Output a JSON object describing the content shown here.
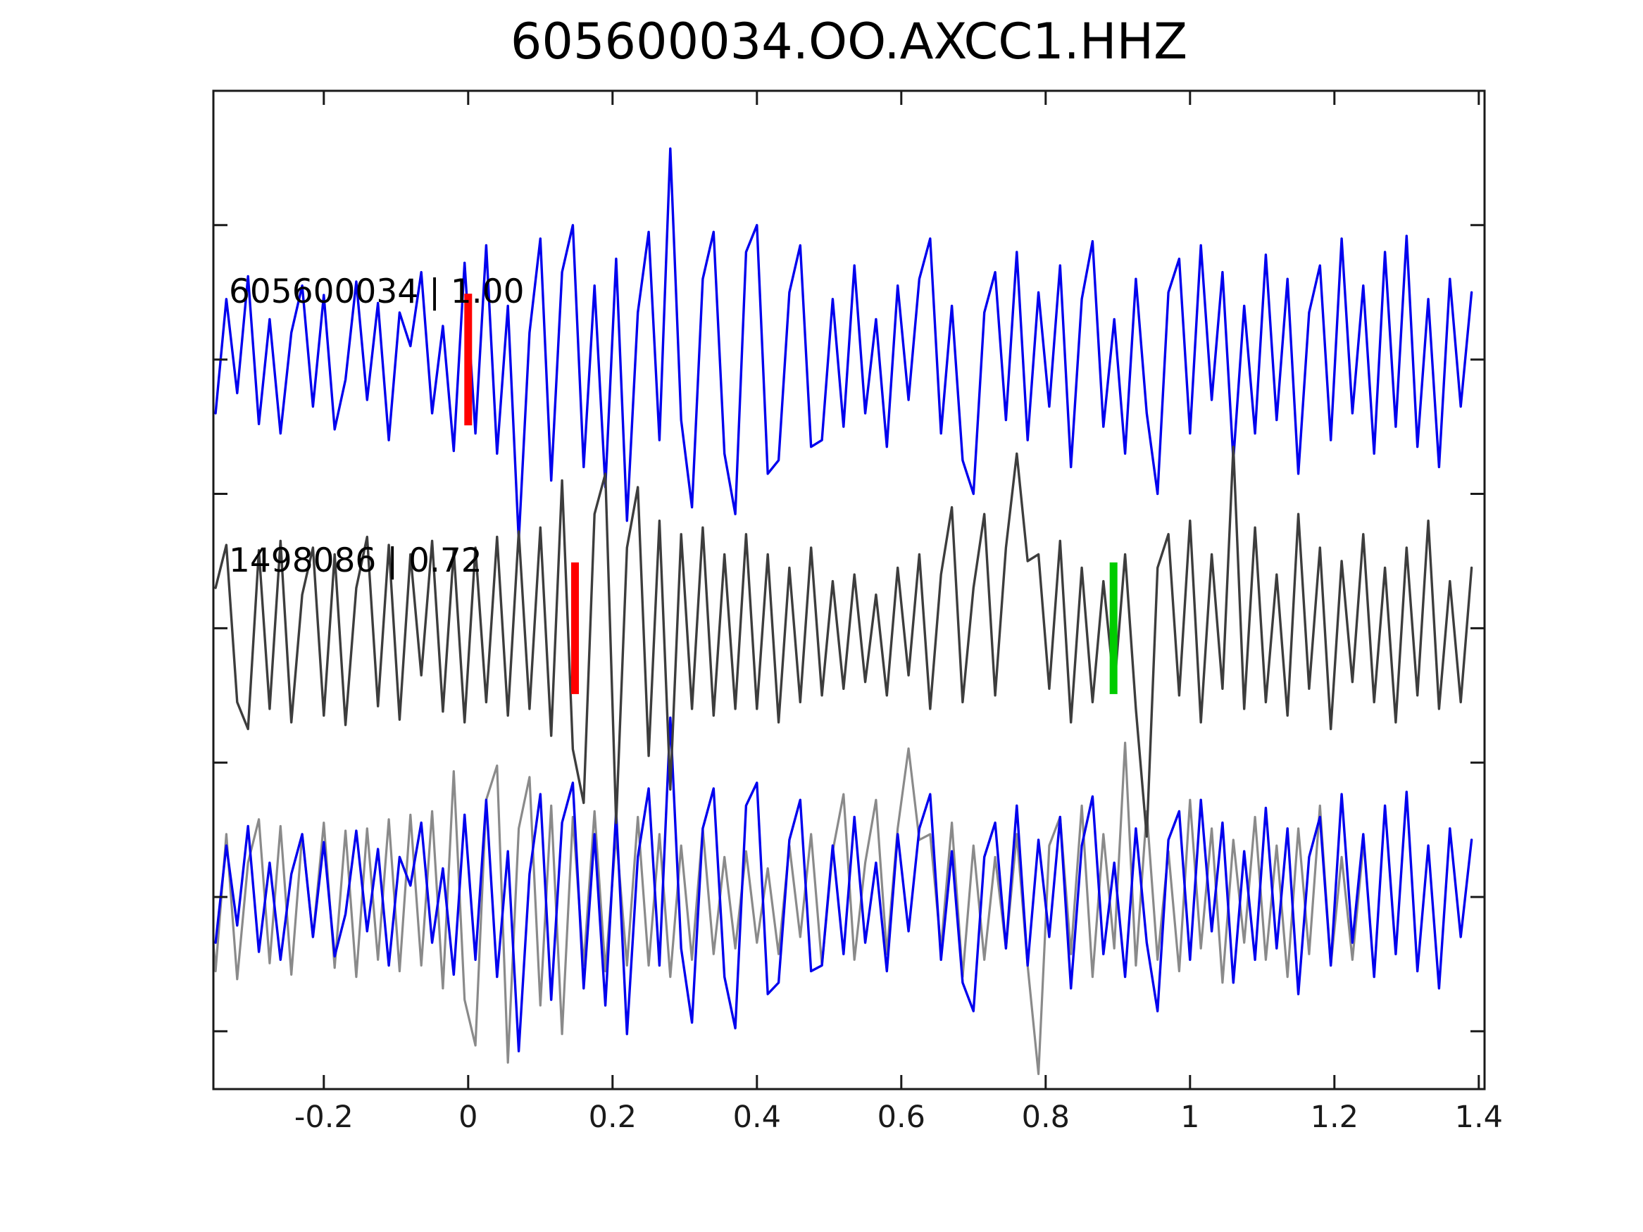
{
  "chart_data": {
    "type": "line",
    "title": "605600034.OO.AXCC1.HHZ",
    "xlabel": "",
    "ylabel": "",
    "xlim": [
      -0.353,
      1.408
    ],
    "ylim": [
      -5.43,
      2.0
    ],
    "grid": false,
    "legend": "none",
    "axis_color": "#1a1a1a",
    "background": "#ffffff",
    "x_ticks": [
      -0.2,
      0,
      0.2,
      0.4,
      0.6,
      0.8,
      1,
      1.2,
      1.4
    ],
    "x_tick_labels": [
      "-0.2",
      "0",
      "0.2",
      "0.4",
      "0.6",
      "0.8",
      "1",
      "1.2",
      "1.4"
    ],
    "y_ticks": [
      2,
      1,
      0,
      -1,
      -2,
      -3,
      -4,
      -5
    ],
    "y_tick_labels": [],
    "x_start": -0.35,
    "x_step": 0.015,
    "template_values": [
      -0.4,
      0.45,
      -0.25,
      0.62,
      -0.48,
      0.3,
      -0.55,
      0.2,
      0.55,
      -0.35,
      0.48,
      -0.52,
      -0.15,
      0.58,
      -0.3,
      0.42,
      -0.6,
      0.35,
      0.1,
      0.65,
      -0.4,
      0.25,
      -0.68,
      0.72,
      -0.55,
      0.85,
      -0.7,
      0.4,
      -1.35,
      0.2,
      0.9,
      -0.9,
      0.65,
      1.0,
      -0.8,
      0.55,
      -0.95,
      0.75,
      -1.2,
      0.35,
      0.95,
      -0.6,
      1.57,
      -0.45,
      -1.1,
      0.6,
      0.95,
      -0.7,
      -1.15,
      0.8,
      1.0,
      -0.85,
      -0.75,
      0.5,
      0.85,
      -0.65,
      -0.6,
      0.45,
      -0.5,
      0.7,
      -0.4,
      0.3,
      -0.65,
      0.55,
      -0.3,
      0.6,
      0.9,
      -0.55,
      0.4,
      -0.75,
      -1.0,
      0.35,
      0.65,
      -0.45,
      0.8,
      -0.6,
      0.5,
      -0.35,
      0.7,
      -0.8,
      0.45,
      0.88,
      -0.5,
      0.3,
      -0.7,
      0.6,
      -0.4,
      -1.0,
      0.5,
      0.75,
      -0.55,
      0.85,
      -0.3,
      0.65,
      -0.75,
      0.4,
      -0.55,
      0.78,
      -0.45,
      0.6,
      -0.85,
      0.35,
      0.7,
      -0.6,
      0.9,
      -0.4,
      0.55,
      -0.7,
      0.8,
      -0.5,
      0.92,
      -0.65,
      0.45,
      -0.8,
      0.6,
      -0.35,
      0.5
    ],
    "detection_values": [
      0.3,
      0.62,
      -0.55,
      -0.75,
      0.58,
      -0.6,
      0.65,
      -0.7,
      0.25,
      0.6,
      -0.65,
      0.55,
      -0.72,
      0.3,
      0.68,
      -0.58,
      0.62,
      -0.68,
      0.55,
      -0.35,
      0.65,
      -0.62,
      0.58,
      -0.7,
      0.6,
      -0.55,
      0.68,
      -0.65,
      0.72,
      -0.6,
      0.75,
      -0.8,
      1.1,
      -0.9,
      -1.3,
      0.85,
      1.15,
      -1.45,
      0.6,
      1.05,
      -0.95,
      0.8,
      -1.2,
      0.7,
      -0.6,
      0.75,
      -0.65,
      0.55,
      -0.6,
      0.7,
      -0.6,
      0.55,
      -0.7,
      0.45,
      -0.55,
      0.6,
      -0.5,
      0.35,
      -0.45,
      0.4,
      -0.4,
      0.25,
      -0.5,
      0.45,
      -0.35,
      0.55,
      -0.6,
      0.4,
      0.9,
      -0.55,
      0.3,
      0.85,
      -0.5,
      0.6,
      1.3,
      0.5,
      0.55,
      -0.45,
      0.65,
      -0.7,
      0.45,
      -0.55,
      0.35,
      -0.45,
      0.55,
      -0.6,
      -1.55,
      0.45,
      0.7,
      -0.5,
      0.8,
      -0.7,
      0.55,
      -0.45,
      1.35,
      -0.6,
      0.75,
      -0.55,
      0.4,
      -0.65,
      0.85,
      -0.45,
      0.6,
      -0.75,
      0.5,
      -0.4,
      0.7,
      -0.55,
      0.45,
      -0.7,
      0.6,
      -0.5,
      0.8,
      -0.6,
      0.35,
      -0.55,
      0.45
    ],
    "series": [
      {
        "name": "detection-overlay",
        "color": "#8a8a8a",
        "offset": -4,
        "scale": 0.85,
        "x_shift": -0.15,
        "width": 3.2,
        "values_key": "detection_values"
      },
      {
        "name": "template-overlay",
        "color": "#0000ee",
        "offset": -4,
        "scale": 0.85,
        "x_shift": 0,
        "width": 3.4,
        "values_key": "template_values"
      },
      {
        "name": "template",
        "color": "#0000ee",
        "offset": 0,
        "scale": 1,
        "x_shift": 0,
        "width": 3.4,
        "values_key": "template_values"
      },
      {
        "name": "detection",
        "color": "#3d3d3d",
        "offset": -2,
        "scale": 1,
        "x_shift": 0,
        "width": 3.4,
        "values_key": "detection_values"
      }
    ],
    "markers": [
      {
        "x": 0.0,
        "trace_offset": 0,
        "half_height": 0.49,
        "color": "#ff0000"
      },
      {
        "x": 0.148,
        "trace_offset": -2,
        "half_height": 0.49,
        "color": "#ff0000"
      },
      {
        "x": 0.894,
        "trace_offset": -2,
        "half_height": 0.49,
        "color": "#00cc00"
      }
    ],
    "labels": [
      {
        "text": "605600034 | 1.00",
        "x": -0.332,
        "y": 0.5
      },
      {
        "text": "1498086 | 0.72",
        "x": -0.332,
        "y": -1.5
      }
    ]
  }
}
